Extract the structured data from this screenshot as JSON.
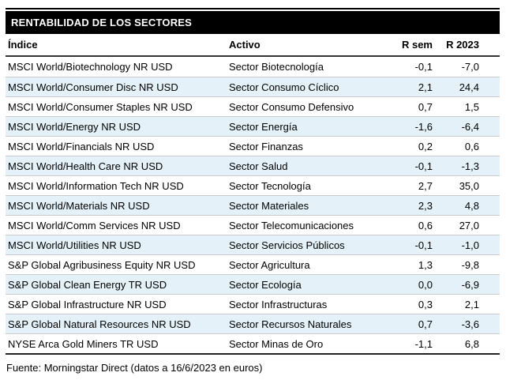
{
  "chart_data": {
    "type": "table",
    "title": "RENTABILIDAD DE LOS SECTORES",
    "columns": [
      "Índice",
      "Activo",
      "R sem",
      "R 2023"
    ],
    "rows": [
      [
        "MSCI World/Biotechnology NR USD",
        "Sector Biotecnología",
        "-0,1",
        "-7,0"
      ],
      [
        "MSCI World/Consumer Disc NR USD",
        "Sector Consumo Cíclico",
        "2,1",
        "24,4"
      ],
      [
        "MSCI World/Consumer Staples NR USD",
        "Sector Consumo Defensivo",
        "0,7",
        "1,5"
      ],
      [
        "MSCI World/Energy NR USD",
        "Sector Energía",
        "-1,6",
        "-6,4"
      ],
      [
        "MSCI World/Financials NR USD",
        "Sector Finanzas",
        "0,2",
        "0,6"
      ],
      [
        "MSCI World/Health Care NR USD",
        "Sector Salud",
        "-0,1",
        "-1,3"
      ],
      [
        "MSCI World/Information Tech NR USD",
        "Sector Tecnología",
        "2,7",
        "35,0"
      ],
      [
        "MSCI World/Materials NR USD",
        "Sector Materiales",
        "2,3",
        "4,8"
      ],
      [
        "MSCI World/Comm Services NR USD",
        "Sector Telecomunicaciones",
        "0,6",
        "27,0"
      ],
      [
        "MSCI World/Utilities NR USD",
        "Sector Servicios Públicos",
        "-0,1",
        "-1,0"
      ],
      [
        "S&P Global Agribusiness Equity NR USD",
        "Sector Agricultura",
        "1,3",
        "-9,8"
      ],
      [
        "S&P Global Clean Energy TR USD",
        "Sector Ecología",
        "0,0",
        "-6,9"
      ],
      [
        "S&P Global Infrastructure NR USD",
        "Sector Infrastructuras",
        "0,3",
        "2,1"
      ],
      [
        "S&P Global Natural Resources NR USD",
        "Sector Recursos Naturales",
        "0,7",
        "-3,6"
      ],
      [
        "NYSE Arca Gold Miners TR USD",
        "Sector Minas de Oro",
        "-1,1",
        "6,8"
      ]
    ],
    "source": "Fuente: Morningstar Direct (datos a 16/6/2023 en euros)",
    "layout": {
      "row_striping": "odd rows white, even rows light blue",
      "value_alignment": "right",
      "grid": "horizontal separators only"
    }
  },
  "colors": {
    "title_bar_bg": "#000000",
    "title_text": "#ffffff",
    "alt_row_bg": "#e4f1f8",
    "row_separator": "#c9c9c9",
    "header_rule": "#333333",
    "bottom_rule": "#222222",
    "text": "#000000"
  }
}
